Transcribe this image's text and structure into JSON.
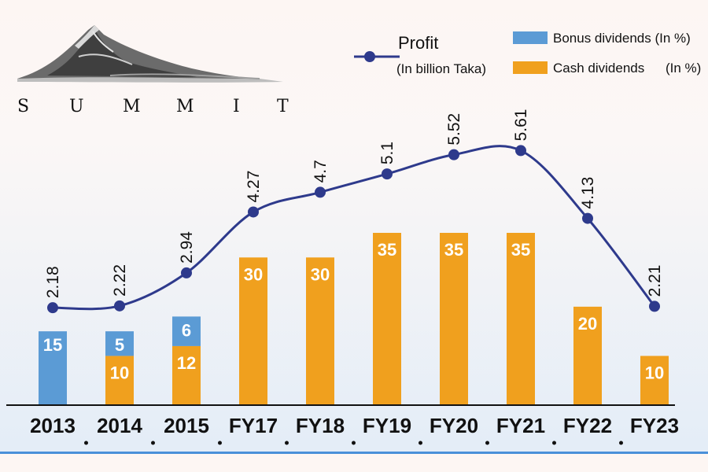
{
  "brand": {
    "logo_text": "SUMMIT",
    "letters": [
      "S",
      "U",
      "M",
      "M",
      "I",
      "T"
    ],
    "logo_icon": "mountain-logo"
  },
  "legend": {
    "profit_label": "Profit",
    "profit_sublabel": "(In billion Taka)",
    "bonus_label": "Bonus dividends (In %)",
    "cash_label": "Cash dividends",
    "cash_unit": "(In %)"
  },
  "colors": {
    "line": "#2e3a8c",
    "bonus": "#5b9bd5",
    "cash": "#f0a01e",
    "background_top": "#fdf6f3",
    "background_bottom": "#e2ecf7",
    "stripe": "#4a90d9"
  },
  "chart_data": {
    "type": "bar",
    "title": "",
    "xlabel": "",
    "ylabel": "",
    "categories": [
      "2013",
      "2014",
      "2015",
      "FY17",
      "FY18",
      "FY19",
      "FY20",
      "FY21",
      "FY22",
      "FY23"
    ],
    "series": [
      {
        "name": "Bonus dividends (In %)",
        "kind": "stacked-bar",
        "values": [
          15,
          5,
          6,
          null,
          null,
          null,
          null,
          null,
          null,
          null
        ]
      },
      {
        "name": "Cash dividends (In %)",
        "kind": "stacked-bar",
        "values": [
          null,
          10,
          12,
          30,
          30,
          35,
          35,
          35,
          20,
          10
        ]
      },
      {
        "name": "Profit (In billion Taka)",
        "kind": "line",
        "values": [
          "2.18",
          "2.22",
          "2.94",
          "4.27",
          "4.7",
          "5.1",
          "5.52",
          "5.61",
          "4.13",
          "2.21"
        ]
      }
    ],
    "bar_ylim": [
      0,
      40
    ],
    "profit_ylim": [
      1.2,
      6.2
    ],
    "grid": false,
    "legend_position": "top-right"
  }
}
